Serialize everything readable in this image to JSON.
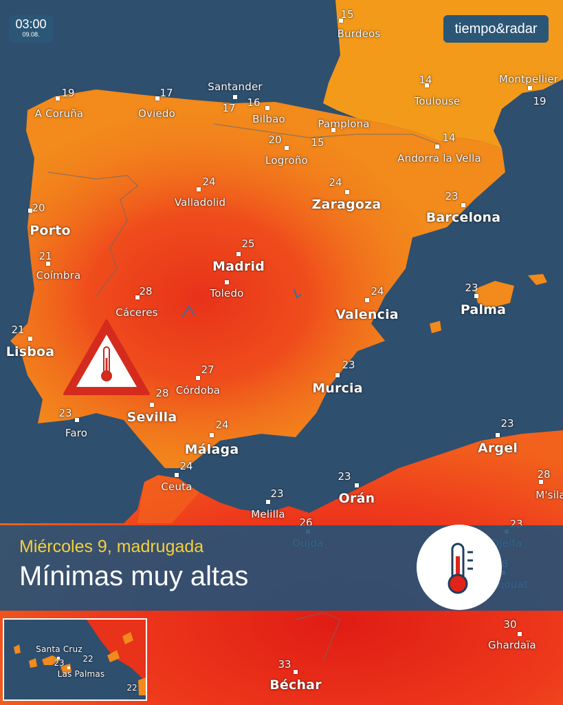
{
  "badge": {
    "time": "03:00",
    "date": "09.08."
  },
  "brand": {
    "name": "tiempo&radar"
  },
  "banner": {
    "subtitle": "Miércoles 9, madrugada",
    "title": "Mínimas muy altas"
  },
  "colors": {
    "sea": "#2f4f6e",
    "banner": "#245278",
    "subtitle": "#f5d03a",
    "warm": "#f07a1a",
    "hot": "#ee3a1c",
    "warning_red": "#d42b1e"
  },
  "icons": [
    "thermometer-icon",
    "warning-triangle-icon"
  ],
  "cities": [
    {
      "name": "Burdeos",
      "temp": "15"
    },
    {
      "name": "A Coruña",
      "temp": "19"
    },
    {
      "name": "Oviedo",
      "temp": "17"
    },
    {
      "name": "Santander",
      "temp": "17"
    },
    {
      "name": "Bilbao",
      "temp": "16"
    },
    {
      "name": "Pamplona",
      "temp": "15"
    },
    {
      "name": "Logroño",
      "temp": "20"
    },
    {
      "name": "Toulouse",
      "temp": "14"
    },
    {
      "name": "Montpellier",
      "temp": "19"
    },
    {
      "name": "Andorra la Vella",
      "temp": "14"
    },
    {
      "name": "Valladolid",
      "temp": "24"
    },
    {
      "name": "Zaragoza",
      "temp": "24"
    },
    {
      "name": "Barcelona",
      "temp": "23"
    },
    {
      "name": "Porto",
      "temp": "20"
    },
    {
      "name": "Madrid",
      "temp": "25"
    },
    {
      "name": "Toledo",
      "temp": ""
    },
    {
      "name": "Coímbra",
      "temp": "21"
    },
    {
      "name": "Cáceres",
      "temp": "28"
    },
    {
      "name": "Valencia",
      "temp": "24"
    },
    {
      "name": "Palma",
      "temp": "23"
    },
    {
      "name": "Lisboa",
      "temp": "21"
    },
    {
      "name": "Córdoba",
      "temp": "27"
    },
    {
      "name": "Murcia",
      "temp": "23"
    },
    {
      "name": "Sevilla",
      "temp": "28"
    },
    {
      "name": "Faro",
      "temp": "23"
    },
    {
      "name": "Málaga",
      "temp": "24"
    },
    {
      "name": "Ceuta",
      "temp": "24"
    },
    {
      "name": "Melilla",
      "temp": "23"
    },
    {
      "name": "Orán",
      "temp": "23"
    },
    {
      "name": "Argel",
      "temp": "23"
    },
    {
      "name": "M'sila",
      "temp": "28"
    },
    {
      "name": "Oujda",
      "temp": "26"
    },
    {
      "name": "Djelfa",
      "temp": "23"
    },
    {
      "name": "Laghouat",
      "temp": "28"
    },
    {
      "name": "Ghardaïa",
      "temp": "30"
    },
    {
      "name": "Béchar",
      "temp": "33"
    }
  ],
  "inset": {
    "cities": [
      {
        "name": "Santa Cruz",
        "temp": "23"
      },
      {
        "name": "Las Palmas",
        "temp": "22"
      }
    ],
    "extra_temp": "22"
  }
}
